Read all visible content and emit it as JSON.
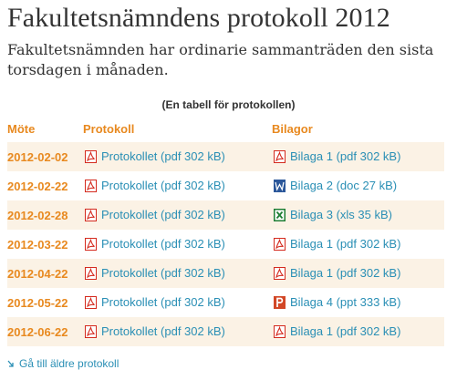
{
  "page": {
    "title": "Fakultetsnämndens protokoll 2012",
    "intro": "Fakultetsnämnden har ordinarie sammanträden den sista torsdagen i månaden."
  },
  "table": {
    "caption": "(En tabell för protokollen)",
    "headers": {
      "meeting": "Möte",
      "minutes": "Protokoll",
      "attachments": "Bilagor"
    },
    "rows": [
      {
        "date": "2012-02-02",
        "minutes": "Protokollet (pdf 302 kB)",
        "minutes_icon": "pdf-icon",
        "attachment": "Bilaga 1 (pdf 302 kB)",
        "attachment_icon": "pdf-icon"
      },
      {
        "date": "2012-02-22",
        "minutes": "Protokollet (pdf 302 kB)",
        "minutes_icon": "pdf-icon",
        "attachment": "Bilaga 2 (doc 27 kB)",
        "attachment_icon": "word-icon"
      },
      {
        "date": "2012-02-28",
        "minutes": "Protokollet (pdf 302 kB)",
        "minutes_icon": "pdf-icon",
        "attachment": "Bilaga 3 (xls 35 kB)",
        "attachment_icon": "excel-icon"
      },
      {
        "date": "2012-03-22",
        "minutes": "Protokollet (pdf 302 kB)",
        "minutes_icon": "pdf-icon",
        "attachment": "Bilaga 1 (pdf 302 kB)",
        "attachment_icon": "pdf-icon"
      },
      {
        "date": "2012-04-22",
        "minutes": "Protokollet (pdf 302 kB)",
        "minutes_icon": "pdf-icon",
        "attachment": "Bilaga 1 (pdf 302 kB)",
        "attachment_icon": "pdf-icon"
      },
      {
        "date": "2012-05-22",
        "minutes": "Protokollet (pdf 302 kB)",
        "minutes_icon": "pdf-icon",
        "attachment": "Bilaga 4 (ppt 333 kB)",
        "attachment_icon": "powerpoint-icon"
      },
      {
        "date": "2012-06-22",
        "minutes": "Protokollet (pdf 302 kB)",
        "minutes_icon": "pdf-icon",
        "attachment": "Bilaga 1 (pdf 302 kB)",
        "attachment_icon": "pdf-icon"
      }
    ]
  },
  "footer": {
    "older_link": "Gå till äldre protokoll",
    "older_link_icon": "arrow-down-right-icon"
  },
  "colors": {
    "accent_orange": "#e8891f",
    "link_blue": "#2a8fb5",
    "row_tint": "#fbf2e5",
    "pdf_red": "#d42a1e",
    "word_blue": "#2b579a",
    "excel_green": "#1e7e34",
    "powerpoint_orange": "#d24726"
  }
}
